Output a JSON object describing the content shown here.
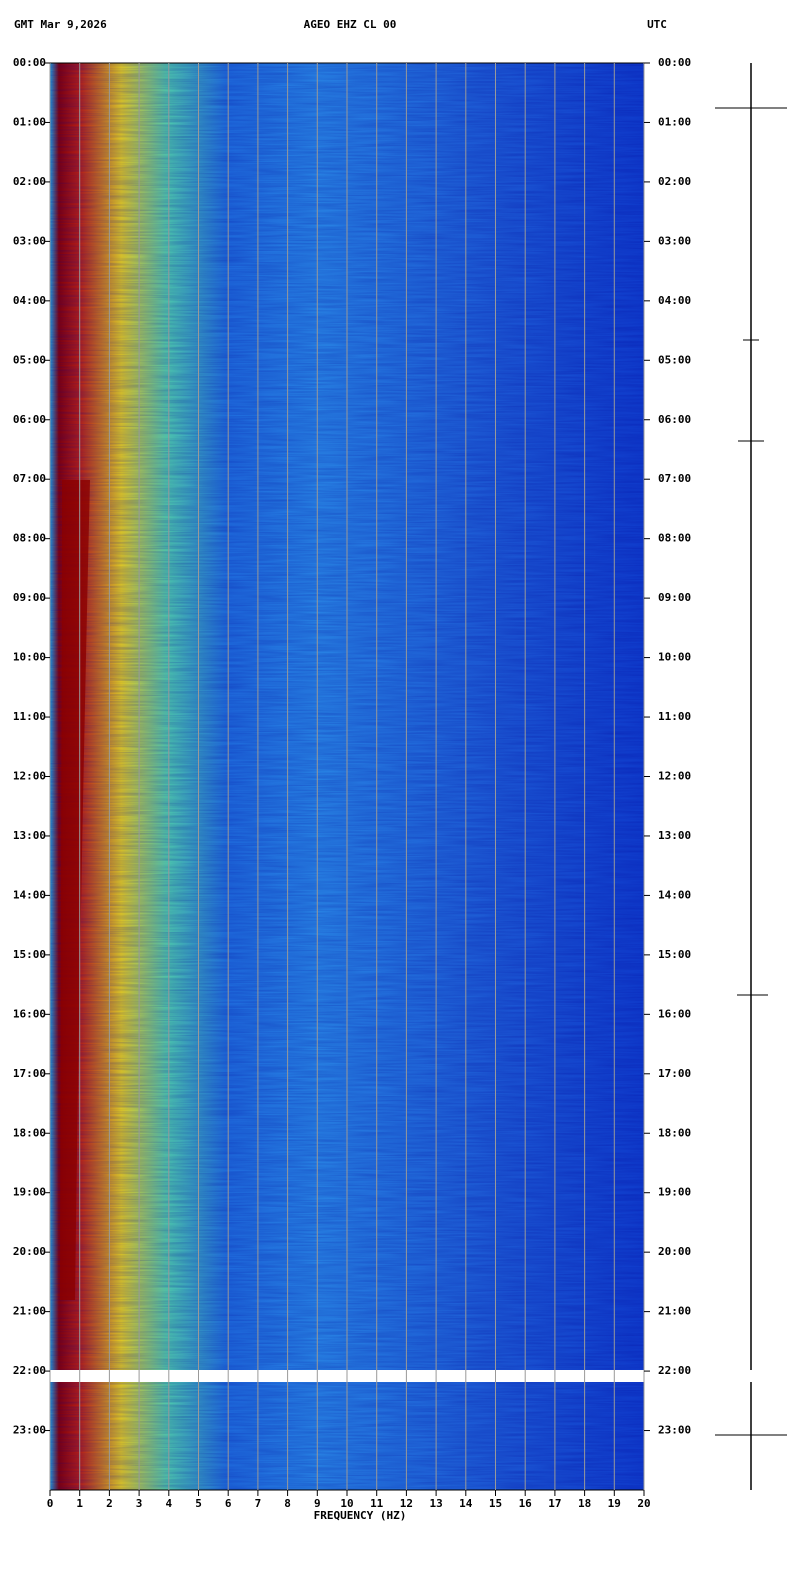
{
  "chart_data": {
    "type": "spectrogram",
    "title": "AGEO EHZ CL 00",
    "date_label": "GMT  Mar 9,2026",
    "timezone": "UTC",
    "xlabel": "FREQUENCY (HZ)",
    "xlim": [
      0,
      20
    ],
    "xticks": [
      0,
      1,
      2,
      3,
      4,
      5,
      6,
      7,
      8,
      9,
      10,
      11,
      12,
      13,
      14,
      15,
      16,
      17,
      18,
      19,
      20
    ],
    "ylim": [
      0,
      24
    ],
    "yticks": [
      {
        "value": 0,
        "label": "00:00"
      },
      {
        "value": 1,
        "label": "01:00"
      },
      {
        "value": 2,
        "label": "02:00"
      },
      {
        "value": 3,
        "label": "03:00"
      },
      {
        "value": 4,
        "label": "04:00"
      },
      {
        "value": 5,
        "label": "05:00"
      },
      {
        "value": 6,
        "label": "06:00"
      },
      {
        "value": 7,
        "label": "07:00"
      },
      {
        "value": 8,
        "label": "08:00"
      },
      {
        "value": 9,
        "label": "09:00"
      },
      {
        "value": 10,
        "label": "10:00"
      },
      {
        "value": 11,
        "label": "11:00"
      },
      {
        "value": 12,
        "label": "12:00"
      },
      {
        "value": 13,
        "label": "13:00"
      },
      {
        "value": 14,
        "label": "14:00"
      },
      {
        "value": 15,
        "label": "15:00"
      },
      {
        "value": 16,
        "label": "16:00"
      },
      {
        "value": 17,
        "label": "17:00"
      },
      {
        "value": 18,
        "label": "18:00"
      },
      {
        "value": 19,
        "label": "19:00"
      },
      {
        "value": 20,
        "label": "20:00"
      },
      {
        "value": 21,
        "label": "21:00"
      },
      {
        "value": 22,
        "label": "22:00"
      },
      {
        "value": 23,
        "label": "23:00"
      }
    ],
    "grid": true
  }
}
